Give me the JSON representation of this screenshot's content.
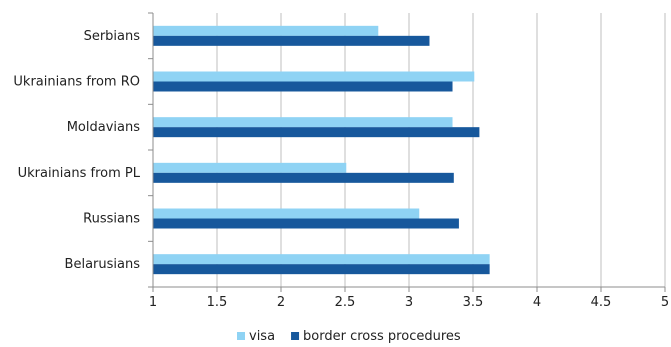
{
  "chart_data": {
    "type": "bar",
    "orientation": "horizontal",
    "categories": [
      "Serbians",
      "Ukrainians from RO",
      "Moldavians",
      "Ukrainians from PL",
      "Russians",
      "Belarusians"
    ],
    "series": [
      {
        "name": "visa",
        "color": "#8fd3f4",
        "values": [
          2.76,
          3.51,
          3.34,
          2.51,
          3.08,
          3.63
        ]
      },
      {
        "name": "border cross procedures",
        "color": "#17589c",
        "values": [
          3.16,
          3.34,
          3.55,
          3.35,
          3.39,
          3.63
        ]
      }
    ],
    "xlim": [
      1,
      5
    ],
    "xticks": [
      "1",
      "1.5",
      "2",
      "2.5",
      "3",
      "3.5",
      "4",
      "4.5",
      "5"
    ],
    "grid": "vertical",
    "legend_position": "bottom"
  }
}
